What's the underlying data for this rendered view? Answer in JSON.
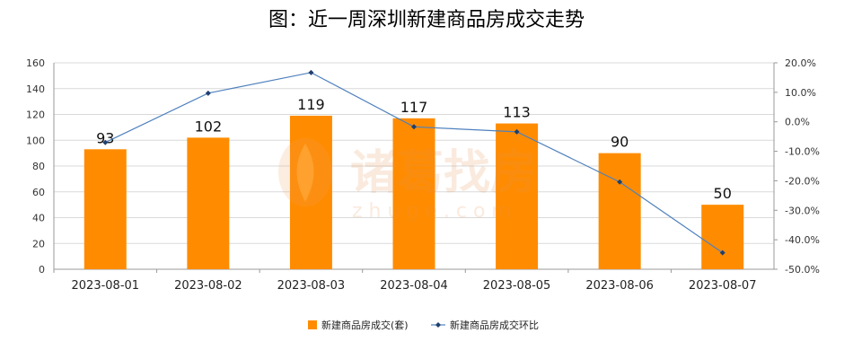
{
  "chart_data": {
    "type": "bar+line",
    "title": "图：近一周深圳新建商品房成交走势",
    "categories": [
      "2023-08-01",
      "2023-08-02",
      "2023-08-03",
      "2023-08-04",
      "2023-08-05",
      "2023-08-06",
      "2023-08-07"
    ],
    "series": [
      {
        "name": "新建商品房成交(套)",
        "type": "bar",
        "axis": "left",
        "values": [
          93,
          102,
          119,
          117,
          113,
          90,
          50
        ],
        "color": "#FF8C00"
      },
      {
        "name": "新建商品房成交环比",
        "type": "line",
        "axis": "right",
        "values": [
          -7.0,
          9.7,
          16.7,
          -1.7,
          -3.4,
          -20.4,
          -44.4
        ],
        "color": "#4F81BD"
      }
    ],
    "y_left": {
      "min": 0,
      "max": 160,
      "ticks": [
        "0",
        "20",
        "40",
        "60",
        "80",
        "100",
        "120",
        "140",
        "160"
      ]
    },
    "y_right": {
      "min": -50,
      "max": 20,
      "ticks": [
        "-50.0%",
        "-40.0%",
        "-30.0%",
        "-20.0%",
        "-10.0%",
        "0.0%",
        "10.0%",
        "20.0%"
      ]
    },
    "grid": true,
    "legend": "bottom-center",
    "watermark": {
      "text": "诸葛找房",
      "sub": "z h u g e . c o m"
    }
  }
}
